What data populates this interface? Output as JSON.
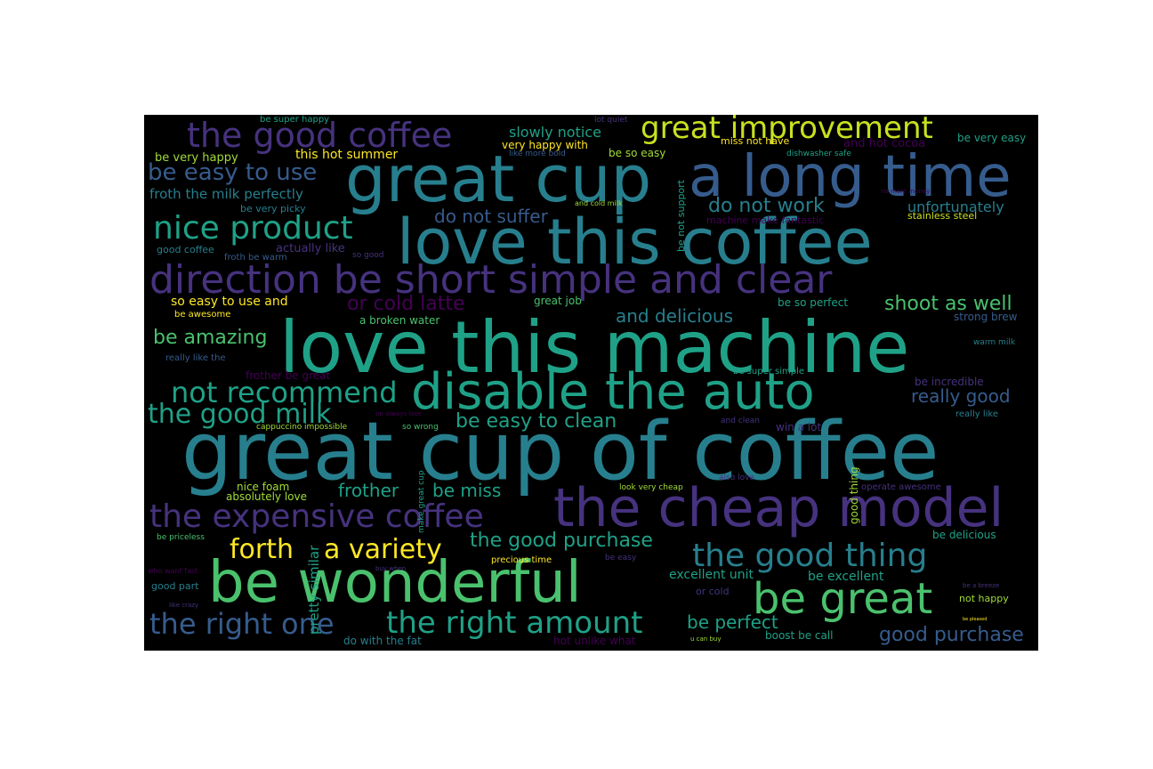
{
  "wordcloud": {
    "words": [
      "great cup of coffee",
      "love this machine",
      "love this coffee",
      "great cup",
      "a long time",
      "disable the auto",
      "the cheap model",
      "be wonderful",
      "direction be short simple and clear",
      "be great",
      "the good coffee",
      "great improvement",
      "nice product",
      "the expensive coffee",
      "the good thing",
      "the right amount",
      "the right one",
      "a variety",
      "forth",
      "not recommend",
      "the good milk",
      "be easy to use",
      "be amazing",
      "be easy to clean",
      "good purchase",
      "shoot as well",
      "do not work",
      "the good purchase",
      "or cold latte",
      "frother",
      "be miss",
      "be perfect",
      "really good",
      "and delicious",
      "do not suffer",
      "slowly notice",
      "froth the milk perfectly",
      "unfortunately",
      "pretty similar",
      "be very happy",
      "this hot summer",
      "so easy to use and",
      "be excellent",
      "excellent unit",
      "be super happy",
      "lot quiet",
      "miss not have",
      "very happy with",
      "and hot cocoa",
      "be very easy",
      "be so easy",
      "like more bold",
      "dishwasher safe",
      "no more money",
      "be very picky",
      "and cold milk",
      "machine make fantastic",
      "stainless steel",
      "be not support",
      "actually like",
      "good coffee",
      "froth be warm",
      "so good",
      "be awesome",
      "a broken water",
      "great job",
      "be so perfect",
      "strong brew",
      "warm milk",
      "really like the",
      "frother be great",
      "be super simple",
      "be incredible",
      "be always lace",
      "cappuccino impossible",
      "so wrong",
      "and clean",
      "win a lot",
      "really like",
      "make great cup",
      "nice foam",
      "absolutely love",
      "look very cheap",
      "also love",
      "good thing",
      "operate awesome",
      "be priceless",
      "be delicious",
      "who want fast",
      "buy when",
      "precious time",
      "be easy",
      "good part",
      "or cold",
      "like crazy",
      "be a breeze",
      "not happy",
      "be pleased",
      "do with the fat",
      "hot unlike what",
      "u can buy",
      "boost be call"
    ]
  }
}
